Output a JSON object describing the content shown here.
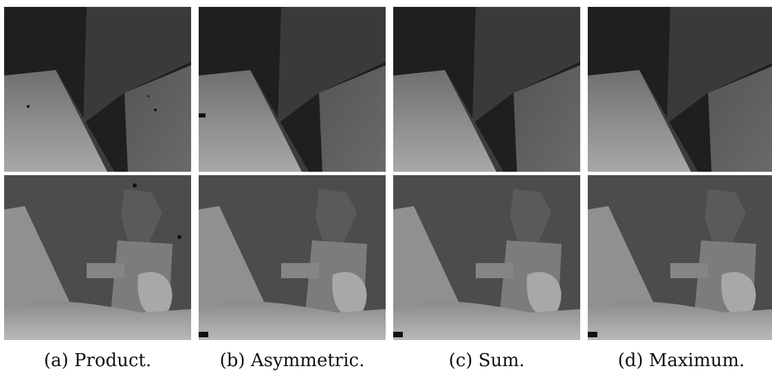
{
  "captions": [
    "(a) Product.",
    "(b) Asymmetric.",
    "(c) Sum.",
    "(d) Maximum."
  ],
  "rows": [
    {
      "scene": "disparity-map-planes",
      "colors": {
        "bg": "#1f1f1f",
        "mid": "#3a3a3a",
        "right": "#5a5a5a",
        "floor": "#8a8a8a",
        "floor_light": "#a8a8a8"
      }
    },
    {
      "scene": "disparity-map-objects",
      "colors": {
        "bg": "#4a4a4a",
        "dark": "#3a3a3a",
        "cone": "#8f8f8f",
        "box": "#7a7a7a",
        "floor": "#a0a0a0",
        "bright": "#c0c0c0"
      }
    }
  ]
}
